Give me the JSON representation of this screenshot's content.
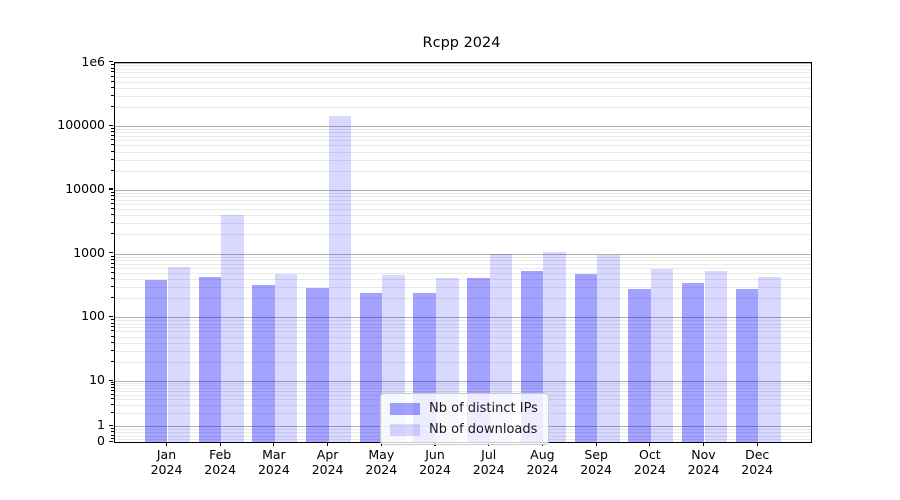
{
  "title": "Rcpp 2024",
  "legend": {
    "items": [
      {
        "label": "Nb of distinct IPs",
        "color": "rgba(0,0,255,0.36)"
      },
      {
        "label": "Nb of downloads",
        "color": "rgba(0,0,255,0.15)"
      }
    ]
  },
  "colors": {
    "bar_dark": "rgba(0,0,255,0.36)",
    "bar_light": "rgba(0,0,255,0.15)",
    "grid_major": "#b0b0b0",
    "grid_minor": "#e9e9e9",
    "axis": "#000000"
  },
  "chart_data": {
    "type": "bar",
    "title": "Rcpp 2024",
    "categories": [
      "Jan 2024",
      "Feb 2024",
      "Mar 2024",
      "Apr 2024",
      "May 2024",
      "Jun 2024",
      "Jul 2024",
      "Aug 2024",
      "Sep 2024",
      "Oct 2024",
      "Nov 2024",
      "Dec 2024"
    ],
    "months": [
      "Jan",
      "Feb",
      "Mar",
      "Apr",
      "May",
      "Jun",
      "Jul",
      "Aug",
      "Sep",
      "Oct",
      "Nov",
      "Dec"
    ],
    "year": "2024",
    "series": [
      {
        "name": "Nb of distinct IPs",
        "values": [
          390,
          435,
          325,
          290,
          240,
          245,
          420,
          535,
          475,
          280,
          340,
          280
        ]
      },
      {
        "name": "Nb of downloads",
        "values": [
          620,
          4000,
          475,
          143000,
          460,
          410,
          1000,
          1050,
          950,
          570,
          540,
          435
        ]
      }
    ],
    "yscale": "symlog",
    "ylim": [
      0,
      1000000
    ],
    "y_tick_labels": [
      "1e6",
      "100000",
      "10000",
      "1000",
      "100",
      "10",
      "1",
      "0"
    ],
    "y_tick_values": [
      1000000,
      100000,
      10000,
      1000,
      100,
      10,
      1,
      0
    ],
    "grid": "major+minor",
    "legend_position": "lower center"
  }
}
